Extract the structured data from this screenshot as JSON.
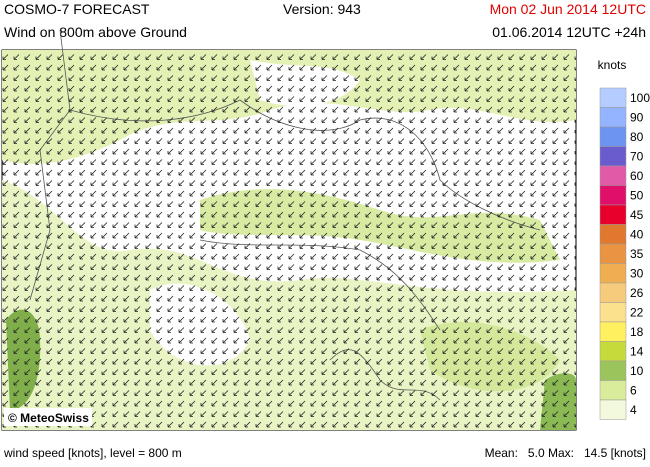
{
  "header": {
    "title": "COSMO-7 FORECAST",
    "version": "Version: 943",
    "valid": "Mon 02 Jun 2014 12UTC",
    "subtitle": "Wind on 800m above Ground",
    "run": "01.06.2014 12UTC +24h"
  },
  "legend": {
    "unit": "knots",
    "levels": [
      {
        "label": "100",
        "color": "#b4ccff"
      },
      {
        "label": "90",
        "color": "#94b4ff"
      },
      {
        "label": "80",
        "color": "#6e94f2"
      },
      {
        "label": "70",
        "color": "#6a5ccc"
      },
      {
        "label": "60",
        "color": "#e05aa8"
      },
      {
        "label": "50",
        "color": "#e0106a"
      },
      {
        "label": "45",
        "color": "#e8002c"
      },
      {
        "label": "40",
        "color": "#e07830"
      },
      {
        "label": "35",
        "color": "#e89442"
      },
      {
        "label": "30",
        "color": "#f0ae52"
      },
      {
        "label": "26",
        "color": "#f6cc7c"
      },
      {
        "label": "22",
        "color": "#fbe08e"
      },
      {
        "label": "18",
        "color": "#fff060"
      },
      {
        "label": "14",
        "color": "#c6da3c"
      },
      {
        "label": "10",
        "color": "#9cc45c"
      },
      {
        "label": "6",
        "color": "#d8ec9c"
      },
      {
        "label": "4",
        "color": "#f2f9dc"
      }
    ]
  },
  "map": {
    "credit": "© MeteoSwiss"
  },
  "footer": {
    "variable": "wind speed [knots], level = 800 m",
    "stats": "Mean:   5.0 Max:   14.5 [knots]"
  }
}
